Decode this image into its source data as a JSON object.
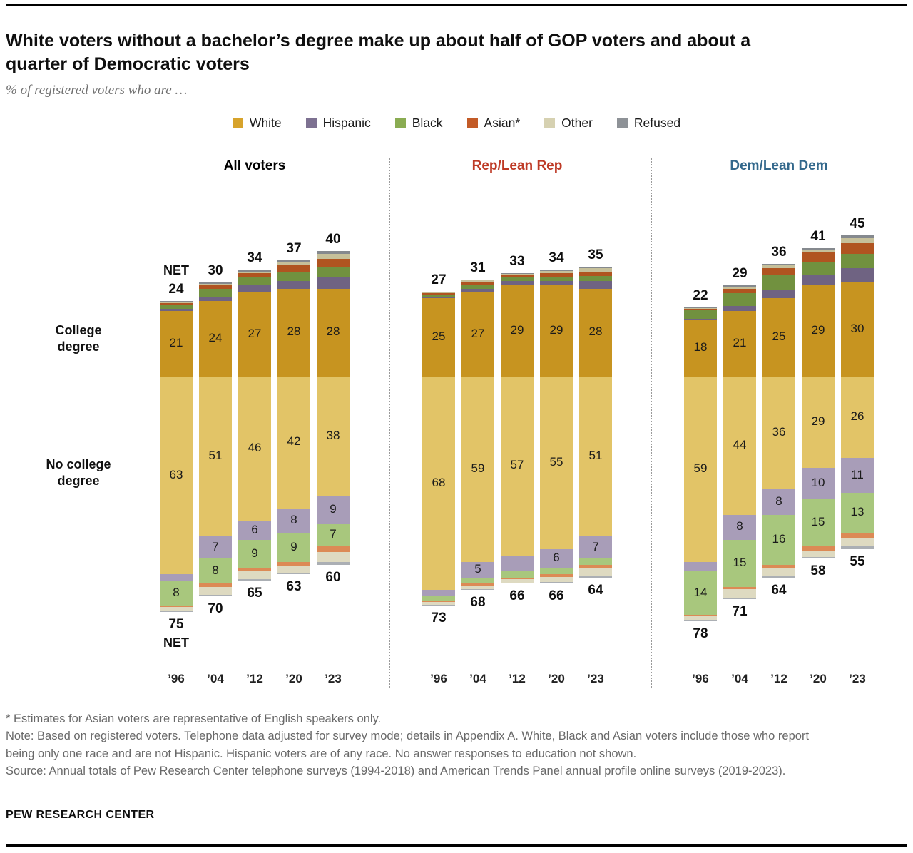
{
  "header": {
    "title": "White voters without a bachelor’s degree make up about half of GOP voters and about a quarter of Democratic voters",
    "subtitle": "% of registered voters who are …"
  },
  "labels": {
    "college_degree": "College\ndegree",
    "no_college_degree": "No college\ndegree",
    "net": "NET"
  },
  "chart_data": {
    "type": "bar",
    "subtype": "diverging-stacked",
    "value_format": "percent of registered voters",
    "x_years": [
      "’96",
      "’04",
      "’12",
      "’20",
      "’23"
    ],
    "series": [
      {
        "key": "white",
        "name": "White",
        "legend_label": "White",
        "legend_color": "#D7A32B",
        "color_college": "#C79420",
        "color_no_college": "#E2C467"
      },
      {
        "key": "hispanic",
        "name": "Hispanic",
        "legend_label": "Hispanic",
        "legend_color": "#7D7191",
        "color_college": "#6F6382",
        "color_no_college": "#A89DB8"
      },
      {
        "key": "black",
        "name": "Black",
        "legend_label": "Black",
        "legend_color": "#8AAC52",
        "color_college": "#71913F",
        "color_no_college": "#A8C77D"
      },
      {
        "key": "asian",
        "name": "Asian",
        "legend_label": "Asian*",
        "legend_color": "#C35B27",
        "color_college": "#B05420",
        "color_no_college": "#DC8A55"
      },
      {
        "key": "other",
        "name": "Other",
        "legend_label": "Other",
        "legend_color": "#D6D1B1",
        "color_college": "#C6C09A",
        "color_no_college": "#DEDAC1"
      },
      {
        "key": "refused",
        "name": "Refused",
        "legend_label": "Refused",
        "legend_color": "#8E9297",
        "color_college": "#85898E",
        "color_no_college": "#ABAFB4"
      }
    ],
    "panels": [
      {
        "label": "All voters",
        "label_color": "#000000",
        "college": [
          {
            "year": "’96",
            "net": 24,
            "values": [
              21,
              0.5,
              1.5,
              0.5,
              0.3,
              0.2
            ],
            "value_labels": [
              "21",
              null,
              null,
              null,
              null,
              null
            ]
          },
          {
            "year": "’04",
            "net": 30,
            "values": [
              24,
              1.5,
              2.5,
              1.0,
              0.5,
              0.5
            ],
            "value_labels": [
              "24",
              null,
              null,
              null,
              null,
              null
            ]
          },
          {
            "year": "’12",
            "net": 34,
            "values": [
              27,
              2.0,
              2.5,
              1.5,
              0.5,
              0.5
            ],
            "value_labels": [
              "27",
              null,
              null,
              null,
              null,
              null
            ]
          },
          {
            "year": "’20",
            "net": 37,
            "values": [
              28,
              2.5,
              3.0,
              2.0,
              1.0,
              0.5
            ],
            "value_labels": [
              "28",
              null,
              null,
              null,
              null,
              null
            ]
          },
          {
            "year": "’23",
            "net": 40,
            "values": [
              28,
              3.5,
              3.5,
              2.5,
              1.5,
              1.0
            ],
            "value_labels": [
              "28",
              null,
              null,
              null,
              null,
              null
            ]
          }
        ],
        "no_college": [
          {
            "year": "’96",
            "net": 75,
            "values": [
              63,
              2.0,
              8,
              0.5,
              1.0,
              0.5
            ],
            "value_labels": [
              "63",
              null,
              "8",
              null,
              null,
              null
            ]
          },
          {
            "year": "’04",
            "net": 70,
            "values": [
              51,
              7,
              8,
              1.0,
              2.5,
              0.5
            ],
            "value_labels": [
              "51",
              "7",
              "8",
              null,
              null,
              null
            ]
          },
          {
            "year": "’12",
            "net": 65,
            "values": [
              46,
              6,
              9,
              1.0,
              2.5,
              0.5
            ],
            "value_labels": [
              "46",
              "6",
              "9",
              null,
              null,
              null
            ]
          },
          {
            "year": "’20",
            "net": 63,
            "values": [
              42,
              8,
              9,
              1.5,
              2.0,
              0.5
            ],
            "value_labels": [
              "42",
              "8",
              "9",
              null,
              null,
              null
            ]
          },
          {
            "year": "’23",
            "net": 60,
            "values": [
              38,
              9,
              7,
              2.0,
              3.0,
              1.0
            ],
            "value_labels": [
              "38",
              "9",
              "7",
              null,
              null,
              null
            ]
          }
        ]
      },
      {
        "label": "Rep/Lean Rep",
        "label_color": "#BE3A26",
        "college": [
          {
            "year": "’96",
            "net": 27,
            "values": [
              25,
              0.5,
              0.7,
              0.3,
              0.3,
              0.2
            ],
            "value_labels": [
              "25",
              null,
              null,
              null,
              null,
              null
            ]
          },
          {
            "year": "’04",
            "net": 31,
            "values": [
              27,
              1.0,
              1.2,
              1.0,
              0.5,
              0.3
            ],
            "value_labels": [
              "27",
              null,
              null,
              null,
              null,
              null
            ]
          },
          {
            "year": "’12",
            "net": 33,
            "values": [
              29,
              1.5,
              1.0,
              0.8,
              0.4,
              0.3
            ],
            "value_labels": [
              "29",
              null,
              null,
              null,
              null,
              null
            ]
          },
          {
            "year": "’20",
            "net": 34,
            "values": [
              29,
              1.5,
              1.0,
              1.5,
              0.7,
              0.3
            ],
            "value_labels": [
              "29",
              null,
              null,
              null,
              null,
              null
            ]
          },
          {
            "year": "’23",
            "net": 35,
            "values": [
              28,
              2.5,
              1.5,
              1.5,
              1.0,
              0.5
            ],
            "value_labels": [
              "28",
              null,
              null,
              null,
              null,
              null
            ]
          }
        ],
        "no_college": [
          {
            "year": "’96",
            "net": 73,
            "values": [
              68,
              2.0,
              1.5,
              0.3,
              1.0,
              0.2
            ],
            "value_labels": [
              "68",
              null,
              null,
              null,
              null,
              null
            ]
          },
          {
            "year": "’04",
            "net": 68,
            "values": [
              59,
              5,
              2.0,
              0.5,
              1.2,
              0.3
            ],
            "value_labels": [
              "59",
              "5",
              null,
              null,
              null,
              null
            ]
          },
          {
            "year": "’12",
            "net": 66,
            "values": [
              57,
              5,
              2.0,
              0.5,
              1.2,
              0.3
            ],
            "value_labels": [
              "57",
              null,
              null,
              null,
              null,
              null
            ]
          },
          {
            "year": "’20",
            "net": 66,
            "values": [
              55,
              6,
              2.0,
              0.8,
              1.7,
              0.5
            ],
            "value_labels": [
              "55",
              "6",
              null,
              null,
              null,
              null
            ]
          },
          {
            "year": "’23",
            "net": 64,
            "values": [
              51,
              7,
              2.0,
              1.0,
              2.5,
              0.5
            ],
            "value_labels": [
              "51",
              "7",
              null,
              null,
              null,
              null
            ]
          }
        ]
      },
      {
        "label": "Dem/Lean Dem",
        "label_color": "#33688C",
        "college": [
          {
            "year": "’96",
            "net": 22,
            "values": [
              18,
              0.5,
              2.8,
              0.3,
              0.2,
              0.2
            ],
            "value_labels": [
              "18",
              null,
              null,
              null,
              null,
              null
            ]
          },
          {
            "year": "’04",
            "net": 29,
            "values": [
              21,
              1.5,
              4.0,
              1.5,
              0.5,
              0.5
            ],
            "value_labels": [
              "21",
              null,
              null,
              null,
              null,
              null
            ]
          },
          {
            "year": "’12",
            "net": 36,
            "values": [
              25,
              2.5,
              5.0,
              2.0,
              1.0,
              0.5
            ],
            "value_labels": [
              "25",
              null,
              null,
              null,
              null,
              null
            ]
          },
          {
            "year": "’20",
            "net": 41,
            "values": [
              29,
              3.5,
              4.0,
              3.0,
              1.0,
              0.5
            ],
            "value_labels": [
              "29",
              null,
              null,
              null,
              null,
              null
            ]
          },
          {
            "year": "’23",
            "net": 45,
            "values": [
              30,
              4.5,
              4.5,
              3.5,
              1.5,
              1.0
            ],
            "value_labels": [
              "30",
              null,
              null,
              null,
              null,
              null
            ]
          }
        ],
        "no_college": [
          {
            "year": "’96",
            "net": 78,
            "values": [
              59,
              3.0,
              14,
              0.3,
              1.5,
              0.2
            ],
            "value_labels": [
              "59",
              null,
              "14",
              null,
              null,
              null
            ]
          },
          {
            "year": "’04",
            "net": 71,
            "values": [
              44,
              8,
              15,
              0.8,
              2.7,
              0.5
            ],
            "value_labels": [
              "44",
              "8",
              "15",
              null,
              null,
              null
            ]
          },
          {
            "year": "’12",
            "net": 64,
            "values": [
              36,
              8,
              16,
              1.0,
              2.5,
              0.5
            ],
            "value_labels": [
              "36",
              "8",
              "16",
              null,
              null,
              null
            ]
          },
          {
            "year": "’20",
            "net": 58,
            "values": [
              29,
              10,
              15,
              1.5,
              2.0,
              0.5
            ],
            "value_labels": [
              "29",
              "10",
              "15",
              null,
              null,
              null
            ]
          },
          {
            "year": "’23",
            "net": 55,
            "values": [
              26,
              11,
              13,
              1.5,
              2.5,
              1.0
            ],
            "value_labels": [
              "26",
              "11",
              "13",
              null,
              null,
              null
            ]
          }
        ]
      }
    ]
  },
  "footnotes": {
    "asterisk": "* Estimates for Asian voters are representative of English speakers only.",
    "note": "Note: Based on registered voters. Telephone data adjusted for survey mode; details in Appendix A. White, Black and Asian voters include those who report being only one race and are not Hispanic. Hispanic voters are of any race. No answer responses to education not shown.",
    "source": "Source: Annual totals of Pew Research Center telephone surveys (1994-2018) and American Trends Panel annual profile online surveys (2019-2023)."
  },
  "footer": {
    "brand": "PEW RESEARCH CENTER"
  }
}
